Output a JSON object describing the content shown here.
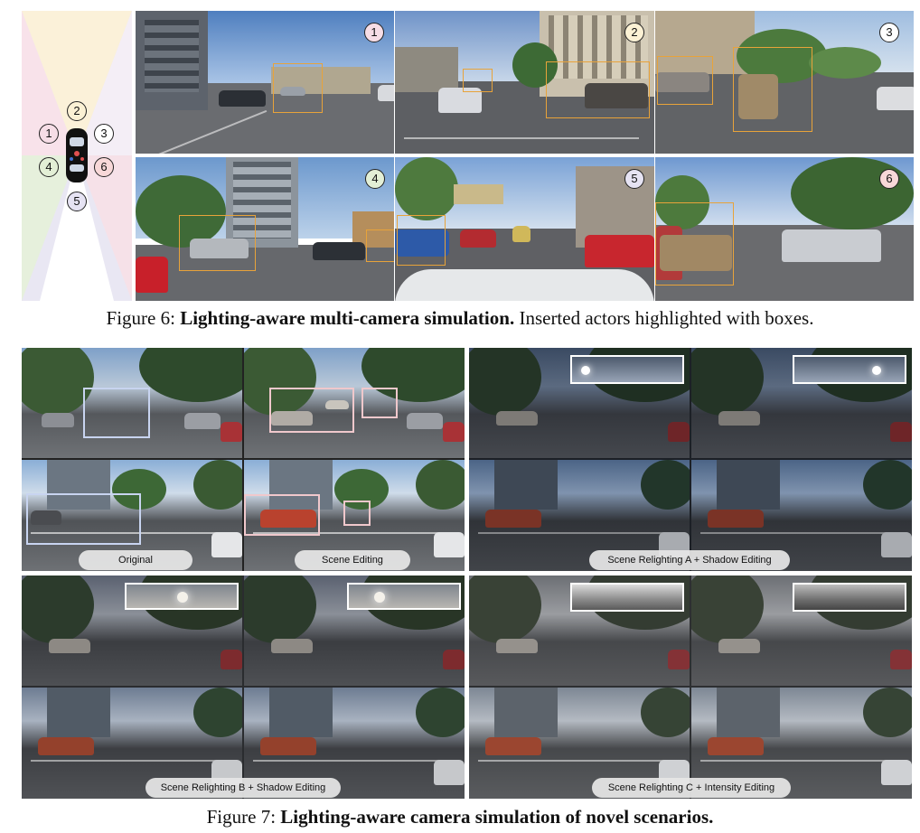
{
  "figure6": {
    "caption_prefix": "Figure 6: ",
    "caption_bold": "Lighting-aware multi-camera simulation.",
    "caption_rest": " Inserted actors highlighted with boxes.",
    "rig_labels": [
      "1",
      "2",
      "3",
      "4",
      "5",
      "6"
    ],
    "camera_labels": [
      "1",
      "2",
      "3",
      "4",
      "5",
      "6"
    ]
  },
  "figure7": {
    "caption_prefix": "Figure 7: ",
    "caption_bold": "Lighting-aware camera simulation of novel scenarios.",
    "labels": {
      "original": "Original",
      "scene_editing": "Scene Editing",
      "relight_a": "Scene Relighting A + Shadow Editing",
      "relight_b": "Scene Relighting B + Shadow Editing",
      "relight_c": "Scene Relighting C + Intensity Editing"
    }
  },
  "colors": {
    "insert_box": "#e8a33a",
    "edit_box": "#f0c8cc",
    "orig_box": "#c8d4f0",
    "badge_1": "#f6dde6",
    "badge_2": "#fbf1d4",
    "badge_3": "#ffffff",
    "badge_4": "#e3efd6",
    "badge_5": "#e6e3f3",
    "badge_6": "#f8d8d8"
  }
}
